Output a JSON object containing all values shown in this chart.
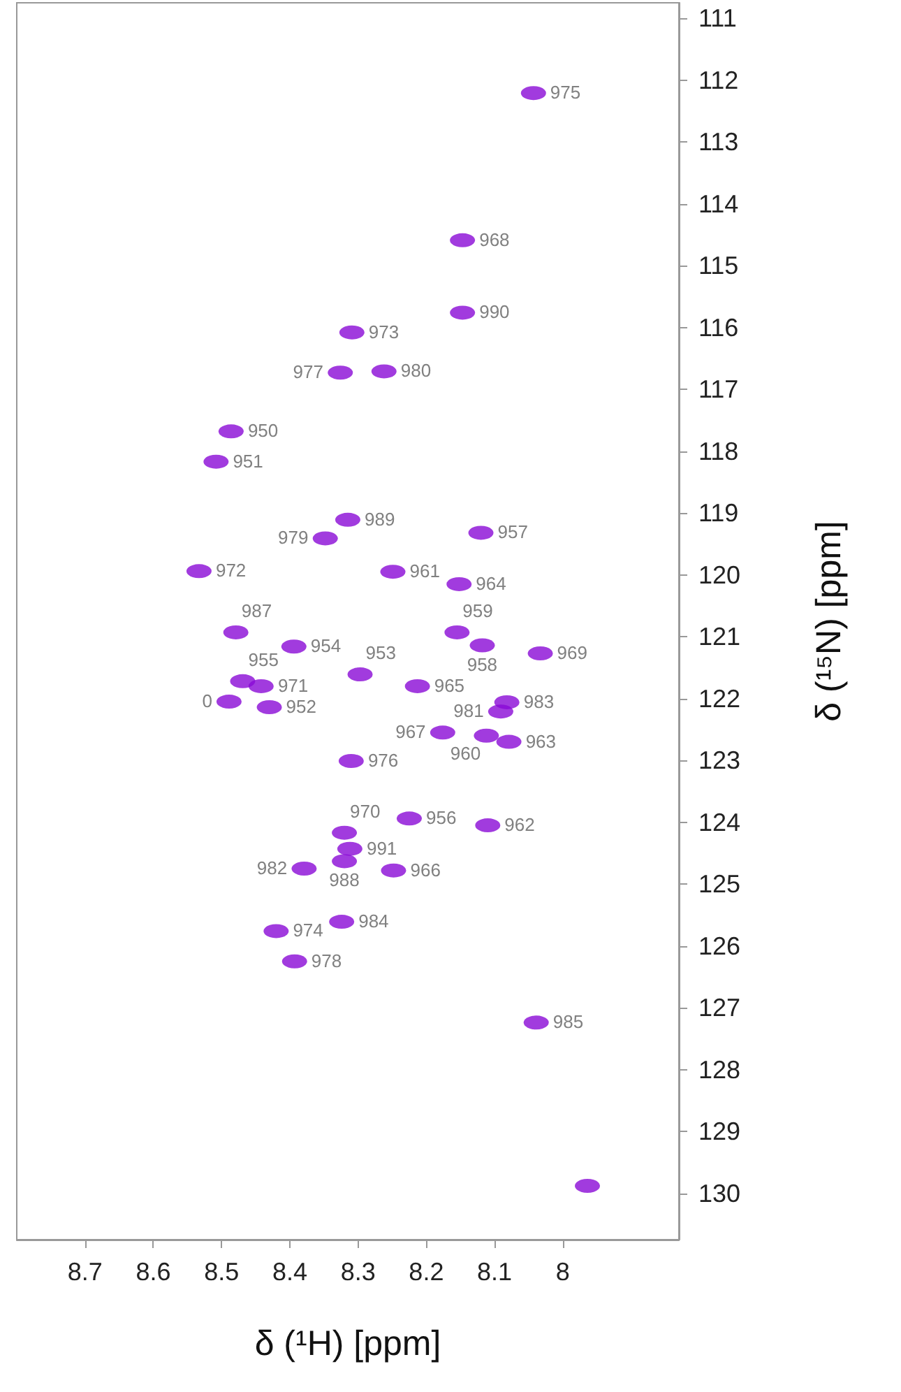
{
  "chart_data": {
    "type": "scatter",
    "xlabel": "δ (¹H) [ppm]",
    "ylabel": "δ (¹⁵N) [ppm]",
    "xlim": [
      8.8,
      7.83
    ],
    "xticks": [
      8.7,
      8.6,
      8.5,
      8.4,
      8.3,
      8.2,
      8.1,
      8
    ],
    "ylim": [
      130.75,
      110.75
    ],
    "yticks": [
      111,
      112,
      113,
      114,
      115,
      116,
      117,
      118,
      119,
      120,
      121,
      122,
      123,
      124,
      125,
      126,
      127,
      128,
      129,
      130
    ],
    "grid": false,
    "marker": "circle",
    "series": [
      {
        "color": "#8a0ad6",
        "x": [
          8.043,
          8.147,
          8.147,
          8.309,
          8.326,
          8.262,
          8.486,
          8.508,
          8.315,
          8.348,
          8.12,
          8.533,
          8.249,
          8.152,
          8.479,
          8.394,
          8.155,
          8.118,
          8.033,
          8.469,
          8.442,
          8.297,
          8.489,
          8.43,
          8.213,
          8.082,
          8.091,
          8.176,
          8.112,
          8.079,
          8.31,
          8.32,
          8.312,
          8.32,
          8.11,
          8.225,
          8.379,
          8.248,
          8.42,
          8.324,
          8.393,
          8.039,
          7.964
        ],
        "values": [
          112.21,
          114.59,
          115.76,
          116.08,
          116.73,
          116.71,
          117.68,
          118.17,
          119.11,
          119.41,
          119.32,
          119.94,
          119.95,
          120.15,
          120.93,
          121.16,
          120.93,
          121.14,
          121.27,
          121.72,
          121.8,
          121.61,
          122.05,
          122.14,
          121.8,
          122.06,
          122.21,
          122.55,
          122.6,
          122.7,
          123.01,
          124.17,
          124.43,
          124.63,
          124.05,
          123.94,
          124.75,
          124.78,
          125.76,
          125.61,
          126.25,
          127.24,
          129.88
        ]
      }
    ],
    "annotations": [
      {
        "text": "975",
        "x": 8.043,
        "y": 112.21
      },
      {
        "text": "968",
        "x": 8.147,
        "y": 114.59
      },
      {
        "text": "990",
        "x": 8.147,
        "y": 115.76
      },
      {
        "text": "973",
        "x": 8.309,
        "y": 116.08
      },
      {
        "text": "977",
        "x": 8.326,
        "y": 116.73
      },
      {
        "text": "980",
        "x": 8.262,
        "y": 116.71
      },
      {
        "text": "950",
        "x": 8.486,
        "y": 117.68
      },
      {
        "text": "951",
        "x": 8.508,
        "y": 118.17
      },
      {
        "text": "989",
        "x": 8.315,
        "y": 119.11
      },
      {
        "text": "979",
        "x": 8.348,
        "y": 119.41
      },
      {
        "text": "957",
        "x": 8.12,
        "y": 119.32
      },
      {
        "text": "972",
        "x": 8.533,
        "y": 119.94
      },
      {
        "text": "961",
        "x": 8.249,
        "y": 119.95
      },
      {
        "text": "964",
        "x": 8.152,
        "y": 120.15
      },
      {
        "text": "987",
        "x": 8.479,
        "y": 120.93
      },
      {
        "text": "954",
        "x": 8.394,
        "y": 121.16
      },
      {
        "text": "959",
        "x": 8.155,
        "y": 120.93
      },
      {
        "text": "958",
        "x": 8.118,
        "y": 121.14
      },
      {
        "text": "969",
        "x": 8.033,
        "y": 121.27
      },
      {
        "text": "955",
        "x": 8.469,
        "y": 121.72
      },
      {
        "text": "971",
        "x": 8.442,
        "y": 121.8
      },
      {
        "text": "953",
        "x": 8.297,
        "y": 121.61
      },
      {
        "text": "0",
        "x": 8.489,
        "y": 122.05
      },
      {
        "text": "952",
        "x": 8.43,
        "y": 122.14
      },
      {
        "text": "965",
        "x": 8.213,
        "y": 121.8
      },
      {
        "text": "983",
        "x": 8.082,
        "y": 122.06
      },
      {
        "text": "981",
        "x": 8.091,
        "y": 122.21
      },
      {
        "text": "967",
        "x": 8.176,
        "y": 122.55
      },
      {
        "text": "960",
        "x": 8.112,
        "y": 122.6
      },
      {
        "text": "963",
        "x": 8.079,
        "y": 122.7
      },
      {
        "text": "976",
        "x": 8.31,
        "y": 123.01
      },
      {
        "text": "970",
        "x": 8.32,
        "y": 124.17
      },
      {
        "text": "991",
        "x": 8.312,
        "y": 124.43
      },
      {
        "text": "988",
        "x": 8.32,
        "y": 124.63
      },
      {
        "text": "962",
        "x": 8.11,
        "y": 124.05
      },
      {
        "text": "956",
        "x": 8.225,
        "y": 123.94
      },
      {
        "text": "982",
        "x": 8.379,
        "y": 124.75
      },
      {
        "text": "966",
        "x": 8.248,
        "y": 124.78
      },
      {
        "text": "974",
        "x": 8.42,
        "y": 125.76
      },
      {
        "text": "984",
        "x": 8.324,
        "y": 125.61
      },
      {
        "text": "978",
        "x": 8.393,
        "y": 126.25
      },
      {
        "text": "985",
        "x": 8.039,
        "y": 127.24
      }
    ]
  }
}
